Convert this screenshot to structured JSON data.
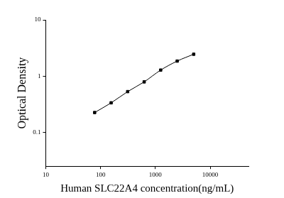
{
  "chart_data": {
    "type": "scatter",
    "x_label": "Human SLC22A4 concentration(ng/mL)",
    "y_label": "Optical Density",
    "x": [
      78,
      156,
      312,
      625,
      1250,
      2500,
      5000
    ],
    "values": [
      0.225,
      0.335,
      0.53,
      0.79,
      1.28,
      1.85,
      2.45
    ],
    "color": "#000000",
    "marker": "square",
    "line_style": "solid",
    "log": true,
    "grid": false,
    "xlim": [
      10,
      50000
    ],
    "xticks": [
      10,
      100,
      1000,
      10000
    ],
    "ylim": [
      0.025,
      10
    ],
    "yticks": [
      0.1,
      1,
      10
    ]
  }
}
